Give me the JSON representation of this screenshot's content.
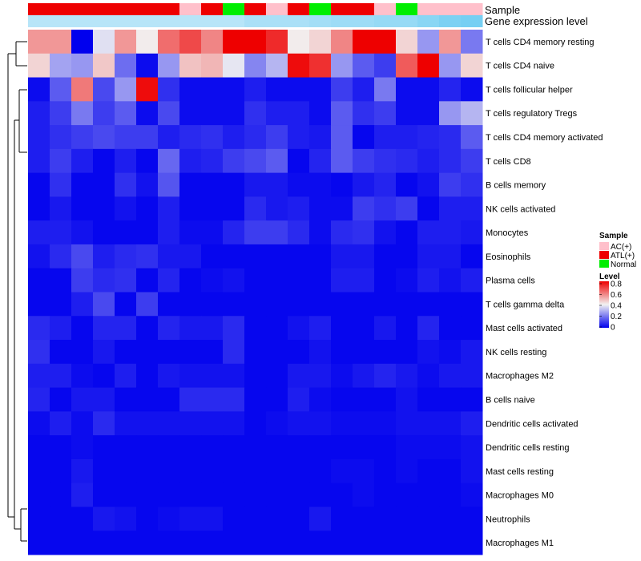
{
  "chart_data": {
    "type": "heatmap",
    "title": "",
    "annotation_tracks": [
      "Sample",
      "Gene expression level"
    ],
    "sample_groups": [
      "ATL(+)",
      "ATL(+)",
      "ATL(+)",
      "ATL(+)",
      "ATL(+)",
      "ATL(+)",
      "ATL(+)",
      "AC(+)",
      "ATL(+)",
      "Normal",
      "ATL(+)",
      "AC(+)",
      "ATL(+)",
      "Normal",
      "ATL(+)",
      "ATL(+)",
      "AC(+)",
      "Normal",
      "AC(+)",
      "AC(+)",
      "AC(+)"
    ],
    "expression_levels": [
      0.45,
      0.45,
      0.45,
      0.45,
      0.45,
      0.45,
      0.45,
      0.45,
      0.45,
      0.45,
      0.55,
      0.55,
      0.55,
      0.6,
      0.65,
      0.65,
      0.7,
      0.7,
      0.8,
      0.9,
      0.95
    ],
    "rows": [
      "T cells CD4 memory resting",
      "T cells CD4 naive",
      "T cells follicular helper",
      "T cells regulatory  Tregs",
      "T cells CD4 memory activated",
      "T cells CD8",
      "B cells memory",
      "NK cells activated",
      "Monocytes",
      "Eosinophils",
      "Plasma cells",
      "T cells gamma delta",
      "Mast cells activated",
      "NK cells resting",
      "Macrophages M2",
      "B cells naive",
      "Dendritic cells activated",
      "Dendritic cells resting",
      "Mast cells resting",
      "Macrophages M0",
      "Neutrophils",
      "Macrophages M1"
    ],
    "values": [
      [
        0.55,
        0.55,
        0.0,
        0.37,
        0.55,
        0.41,
        0.62,
        0.68,
        0.58,
        0.8,
        0.8,
        0.73,
        0.41,
        0.45,
        0.58,
        0.8,
        0.8,
        0.45,
        0.25,
        0.55,
        0.2
      ],
      [
        0.45,
        0.27,
        0.25,
        0.47,
        0.18,
        0.02,
        0.25,
        0.48,
        0.5,
        0.38,
        0.22,
        0.3,
        0.78,
        0.72,
        0.25,
        0.15,
        0.1,
        0.65,
        0.8,
        0.25,
        0.45
      ],
      [
        0.02,
        0.15,
        0.6,
        0.12,
        0.25,
        0.78,
        0.08,
        0.02,
        0.02,
        0.02,
        0.05,
        0.02,
        0.02,
        0.02,
        0.1,
        0.05,
        0.2,
        0.02,
        0.02,
        0.06,
        0.02
      ],
      [
        0.05,
        0.1,
        0.2,
        0.1,
        0.15,
        0.02,
        0.12,
        0.02,
        0.02,
        0.02,
        0.08,
        0.05,
        0.05,
        0.02,
        0.15,
        0.08,
        0.1,
        0.02,
        0.02,
        0.25,
        0.3
      ],
      [
        0.05,
        0.08,
        0.1,
        0.12,
        0.1,
        0.1,
        0.05,
        0.07,
        0.08,
        0.05,
        0.07,
        0.1,
        0.05,
        0.04,
        0.15,
        0.01,
        0.05,
        0.05,
        0.06,
        0.07,
        0.15
      ],
      [
        0.05,
        0.1,
        0.05,
        0.01,
        0.05,
        0.01,
        0.17,
        0.05,
        0.06,
        0.1,
        0.12,
        0.15,
        0.01,
        0.06,
        0.15,
        0.1,
        0.08,
        0.07,
        0.05,
        0.07,
        0.1
      ],
      [
        0.01,
        0.08,
        0.01,
        0.01,
        0.08,
        0.03,
        0.14,
        0.01,
        0.01,
        0.01,
        0.04,
        0.04,
        0.02,
        0.02,
        0.01,
        0.04,
        0.06,
        0.01,
        0.03,
        0.1,
        0.08
      ],
      [
        0.01,
        0.04,
        0.01,
        0.01,
        0.03,
        0.01,
        0.05,
        0.01,
        0.01,
        0.01,
        0.07,
        0.04,
        0.05,
        0.02,
        0.02,
        0.1,
        0.08,
        0.1,
        0.01,
        0.05,
        0.05
      ],
      [
        0.05,
        0.05,
        0.03,
        0.01,
        0.01,
        0.01,
        0.05,
        0.02,
        0.02,
        0.06,
        0.1,
        0.1,
        0.07,
        0.02,
        0.07,
        0.08,
        0.03,
        0.01,
        0.05,
        0.05,
        0.04
      ],
      [
        0.03,
        0.07,
        0.12,
        0.05,
        0.07,
        0.08,
        0.04,
        0.04,
        0.01,
        0.01,
        0.01,
        0.01,
        0.01,
        0.01,
        0.04,
        0.04,
        0.01,
        0.01,
        0.04,
        0.04,
        0.01
      ],
      [
        0.01,
        0.01,
        0.1,
        0.07,
        0.08,
        0.01,
        0.06,
        0.01,
        0.02,
        0.03,
        0.01,
        0.01,
        0.01,
        0.01,
        0.05,
        0.05,
        0.01,
        0.02,
        0.05,
        0.03,
        0.05
      ],
      [
        0.01,
        0.01,
        0.05,
        0.12,
        0.01,
        0.1,
        0.01,
        0.01,
        0.01,
        0.01,
        0.01,
        0.01,
        0.01,
        0.01,
        0.01,
        0.01,
        0.01,
        0.01,
        0.01,
        0.01,
        0.01
      ],
      [
        0.07,
        0.05,
        0.01,
        0.06,
        0.06,
        0.01,
        0.06,
        0.04,
        0.04,
        0.07,
        0.01,
        0.01,
        0.03,
        0.05,
        0.01,
        0.01,
        0.04,
        0.01,
        0.06,
        0.01,
        0.01
      ],
      [
        0.08,
        0.01,
        0.01,
        0.04,
        0.01,
        0.01,
        0.01,
        0.01,
        0.01,
        0.07,
        0.01,
        0.01,
        0.01,
        0.03,
        0.01,
        0.01,
        0.01,
        0.01,
        0.03,
        0.02,
        0.04
      ],
      [
        0.05,
        0.05,
        0.02,
        0.01,
        0.05,
        0.01,
        0.04,
        0.03,
        0.03,
        0.03,
        0.01,
        0.01,
        0.04,
        0.04,
        0.02,
        0.04,
        0.06,
        0.04,
        0.02,
        0.04,
        0.04
      ],
      [
        0.06,
        0.01,
        0.04,
        0.04,
        0.01,
        0.01,
        0.01,
        0.07,
        0.07,
        0.07,
        0.01,
        0.01,
        0.05,
        0.02,
        0.01,
        0.01,
        0.01,
        0.03,
        0.01,
        0.01,
        0.01
      ],
      [
        0.02,
        0.05,
        0.02,
        0.07,
        0.03,
        0.03,
        0.03,
        0.03,
        0.03,
        0.03,
        0.01,
        0.02,
        0.03,
        0.03,
        0.02,
        0.02,
        0.02,
        0.03,
        0.03,
        0.03,
        0.05
      ],
      [
        0.01,
        0.01,
        0.02,
        0.01,
        0.01,
        0.01,
        0.01,
        0.01,
        0.01,
        0.01,
        0.01,
        0.01,
        0.01,
        0.01,
        0.01,
        0.01,
        0.01,
        0.02,
        0.02,
        0.02,
        0.03
      ],
      [
        0.01,
        0.01,
        0.04,
        0.01,
        0.01,
        0.01,
        0.01,
        0.01,
        0.01,
        0.01,
        0.01,
        0.01,
        0.01,
        0.01,
        0.02,
        0.02,
        0.01,
        0.02,
        0.01,
        0.01,
        0.03
      ],
      [
        0.01,
        0.01,
        0.05,
        0.01,
        0.01,
        0.01,
        0.01,
        0.01,
        0.01,
        0.01,
        0.01,
        0.01,
        0.01,
        0.01,
        0.01,
        0.02,
        0.01,
        0.01,
        0.01,
        0.01,
        0.02
      ],
      [
        0.01,
        0.01,
        0.01,
        0.04,
        0.03,
        0.01,
        0.02,
        0.03,
        0.03,
        0.01,
        0.01,
        0.01,
        0.01,
        0.04,
        0.01,
        0.01,
        0.01,
        0.01,
        0.01,
        0.01,
        0.01
      ],
      [
        0.01,
        0.01,
        0.01,
        0.01,
        0.01,
        0.01,
        0.01,
        0.01,
        0.01,
        0.01,
        0.01,
        0.01,
        0.01,
        0.01,
        0.01,
        0.01,
        0.01,
        0.01,
        0.01,
        0.01,
        0.01
      ]
    ],
    "colors": {
      "low": "#0000ee",
      "mid": "#f2f2f2",
      "high": "#ee0000"
    },
    "color_breaks": [
      0,
      0.4,
      0.8
    ],
    "group_colors": {
      "AC(+)": "#ffc0cb",
      "ATL(+)": "#ee0000",
      "Normal": "#00ee00"
    },
    "expression_colors": {
      "low": "#f2f8fc",
      "high": "#6fcdf2"
    },
    "legend": {
      "sample_title": "Sample",
      "sample_entries": [
        "AC(+)",
        "ATL(+)",
        "Normal"
      ],
      "level_title": "Level",
      "level_ticks": [
        "0.8",
        "0.6",
        "0.4",
        "0.2",
        "0"
      ]
    },
    "legend_position": "right"
  }
}
